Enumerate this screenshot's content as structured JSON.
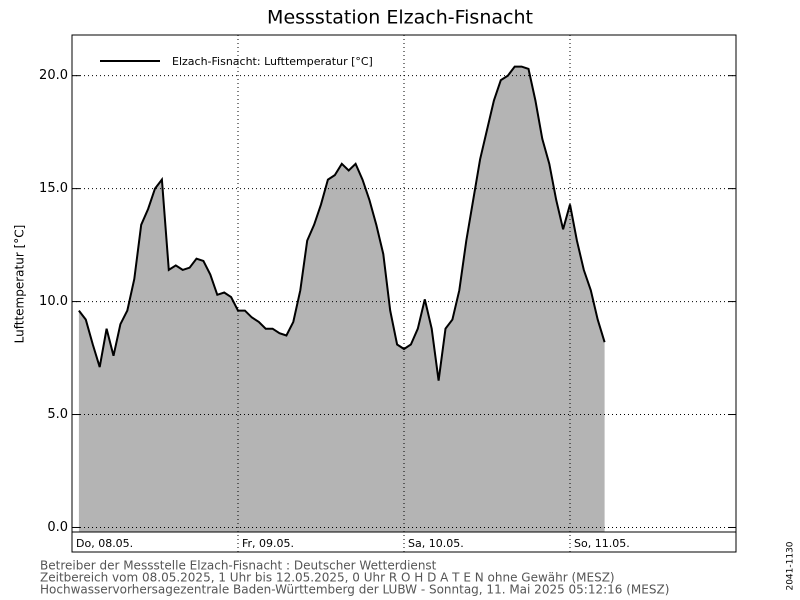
{
  "chart_data": {
    "type": "area",
    "title": "Messstation Elzach-Fisnacht",
    "ylabel": "Lufttemperatur [°C]",
    "series": [
      {
        "name": "Elzach-Fisnacht: Lufttemperatur  [°C]",
        "color": "#000000",
        "fill": "#b4b4b4",
        "x": [
          1,
          2,
          3,
          4,
          5,
          6,
          7,
          8,
          9,
          10,
          11,
          12,
          13,
          14,
          15,
          16,
          17,
          18,
          19,
          20,
          21,
          22,
          23,
          24,
          25,
          26,
          27,
          28,
          29,
          30,
          31,
          32,
          33,
          34,
          35,
          36,
          37,
          38,
          39,
          40,
          41,
          42,
          43,
          44,
          45,
          46,
          47,
          48,
          49,
          50,
          51,
          52,
          53,
          54,
          55,
          56,
          57,
          58,
          59,
          60,
          61,
          62,
          63,
          64,
          65,
          66,
          67,
          68,
          69,
          70,
          71,
          72,
          73,
          74,
          75,
          76,
          77
        ],
        "values": [
          9.6,
          9.2,
          8.1,
          7.1,
          8.8,
          7.6,
          9.0,
          9.6,
          11.0,
          13.4,
          14.1,
          15.0,
          15.4,
          11.4,
          11.6,
          11.4,
          11.5,
          11.9,
          11.8,
          11.2,
          10.3,
          10.4,
          10.2,
          9.6,
          9.6,
          9.3,
          9.1,
          8.8,
          8.8,
          8.6,
          8.5,
          9.1,
          10.5,
          12.7,
          13.4,
          14.3,
          15.4,
          15.6,
          16.1,
          15.8,
          16.1,
          15.4,
          14.5,
          13.4,
          12.1,
          9.6,
          8.1,
          7.9,
          8.1,
          8.8,
          10.1,
          8.8,
          6.5,
          8.8,
          9.2,
          10.5,
          12.7,
          14.5,
          16.3,
          17.6,
          18.9,
          19.8,
          20.0,
          20.4,
          20.4,
          20.3,
          18.9,
          17.2,
          16.1,
          14.5,
          13.2,
          14.3,
          12.7,
          11.4,
          10.5,
          9.2,
          8.2
        ]
      }
    ],
    "xlim": [
      0,
      96
    ],
    "xticks": [
      {
        "value": 0,
        "label": "Do, 08.05."
      },
      {
        "value": 24,
        "label": "Fr, 09.05."
      },
      {
        "value": 48,
        "label": "Sa, 10.05."
      },
      {
        "value": 72,
        "label": "So, 11.05."
      }
    ],
    "ylim": [
      -0.2,
      21.8
    ],
    "yticks": [
      {
        "value": 0,
        "label": "0.0"
      },
      {
        "value": 5,
        "label": "5.0"
      },
      {
        "value": 10,
        "label": "10.0"
      },
      {
        "value": 15,
        "label": "15.0"
      },
      {
        "value": 20,
        "label": "20.0"
      }
    ],
    "grid": true,
    "legend": "upper left",
    "footnotes": [
      "Betreiber der Messstelle Elzach-Fisnacht : Deutscher Wetterdienst",
      "Zeitbereich vom 08.05.2025, 1 Uhr bis 12.05.2025, 0 Uhr   R O H D A T E N ohne Gewähr (MESZ)",
      "Hochwasservorhersagezentrale Baden-Württemberg der LUBW - Sonntag, 11. Mai 2025 05:12:16 (MESZ)"
    ],
    "code": "2041-1130"
  }
}
